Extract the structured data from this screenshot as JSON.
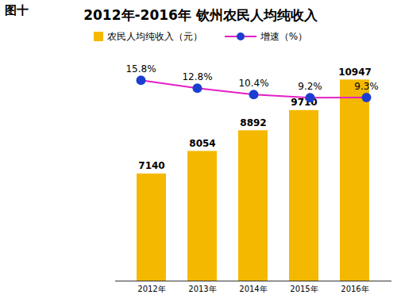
{
  "chart_data": {
    "type": "bar",
    "title": "2012年-2016年 钦州农民人均纯收入",
    "annotations": [
      "图十"
    ],
    "categories": [
      "2012年",
      "2013年",
      "2014年",
      "2015年",
      "2016年"
    ],
    "series": [
      {
        "name": "农民人均纯收入（元）",
        "type": "bar",
        "color": "#f5b800",
        "values": [
          7140,
          8054,
          8892,
          9710,
          10947
        ]
      },
      {
        "name": "增速（%）",
        "type": "line",
        "axis": "y2",
        "color": "#e31fc6",
        "marker": "circle",
        "values": [
          15.8,
          12.8,
          10.4,
          9.2,
          9.3
        ],
        "value_labels": [
          "15.8%",
          "12.8%",
          "10.4%",
          "9.2%",
          "9.3%"
        ]
      }
    ],
    "ylim": [
      2800,
      11600
    ],
    "y2lim": [
      -60,
      22
    ],
    "data_labels": true,
    "tick_labels": "x",
    "legend": "top"
  }
}
